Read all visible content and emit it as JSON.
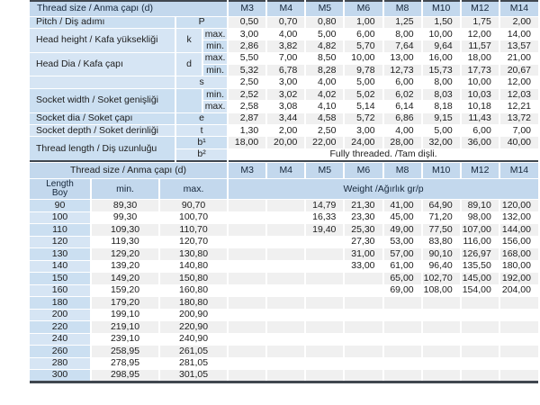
{
  "colors": {
    "header_blue": "#c3d8ed",
    "label_blue": "#d6e5f4",
    "label_blue_dark": "#cbdff1",
    "row_gray": "#f0f0f0",
    "border_dark": "#40474f"
  },
  "spec_table": {
    "title": "Thread size / Anma çapı (d)",
    "columns": [
      "M3",
      "M4",
      "M5",
      "M6",
      "M8",
      "M10",
      "M12",
      "M14"
    ],
    "rows": [
      {
        "label": "Pitch / Diş adımı",
        "lspan": 1,
        "sym": "P",
        "wide": true,
        "values": [
          "0,50",
          "0,70",
          "0,80",
          "1,00",
          "1,25",
          "1,50",
          "1,75",
          "2,00"
        ]
      },
      {
        "label": "Head height / Kafa yüksekliği",
        "lspan": 2,
        "sym": "k",
        "sspan": 2,
        "sub": "max.",
        "values": [
          "3,00",
          "4,00",
          "5,00",
          "6,00",
          "8,00",
          "10,00",
          "12,00",
          "14,00"
        ]
      },
      {
        "sub": "min.",
        "values": [
          "2,86",
          "3,82",
          "4,82",
          "5,70",
          "7,64",
          "9,64",
          "11,57",
          "13,57"
        ]
      },
      {
        "label": "Head Dia / Kafa çapı",
        "lspan": 2,
        "sym": "d",
        "sspan": 2,
        "sub": "max.",
        "values": [
          "5,50",
          "7,00",
          "8,50",
          "10,00",
          "13,00",
          "16,00",
          "18,00",
          "21,00"
        ]
      },
      {
        "sub": "min.",
        "values": [
          "5,32",
          "6,78",
          "8,28",
          "9,78",
          "12,73",
          "15,73",
          "17,73",
          "20,67"
        ]
      },
      {
        "label": "",
        "lspan": 1,
        "sym": "s",
        "wide": true,
        "values": [
          "2,50",
          "3,00",
          "4,00",
          "5,00",
          "6,00",
          "8,00",
          "10,00",
          "12,00"
        ]
      },
      {
        "label": "Socket width / Soket genişliği",
        "lspan": 2,
        "sym": "",
        "sspan": 2,
        "sub": "min.",
        "values": [
          "2,52",
          "3,02",
          "4,02",
          "5,02",
          "6,02",
          "8,03",
          "10,03",
          "12,03"
        ]
      },
      {
        "sub": "max.",
        "values": [
          "2,58",
          "3,08",
          "4,10",
          "5,14",
          "6,14",
          "8,18",
          "10,18",
          "12,21"
        ]
      },
      {
        "label": "Socket dia / Soket çapı",
        "lspan": 1,
        "sym": "e",
        "wide": true,
        "values": [
          "2,87",
          "3,44",
          "4,58",
          "5,72",
          "6,86",
          "9,15",
          "11,43",
          "13,72"
        ]
      },
      {
        "label": "Socket depth / Soket derinliği",
        "lspan": 1,
        "sym": "t",
        "wide": true,
        "values": [
          "1,30",
          "2,00",
          "2,50",
          "3,00",
          "4,00",
          "5,00",
          "6,00",
          "7,00"
        ]
      },
      {
        "label": "Thread length / Diş uzunluğu",
        "lspan": 2,
        "sym": "b¹",
        "wide": true,
        "values": [
          "18,00",
          "20,00",
          "22,00",
          "24,00",
          "28,00",
          "32,00",
          "36,00",
          "40,00"
        ]
      },
      {
        "sym": "b²",
        "wide": true,
        "spanText": "Fully threaded. /Tam dişli."
      }
    ]
  },
  "weight_table": {
    "title": "Thread size / Anma çapı (d)",
    "columns": [
      "M3",
      "M4",
      "M5",
      "M6",
      "M8",
      "M10",
      "M12",
      "M14"
    ],
    "length_header_line1": "Length",
    "length_header_line2": "Boy",
    "min_header": "min.",
    "max_header": "max.",
    "weight_header": "Weight /Ağırlık gr/p",
    "rows": [
      {
        "length": "90",
        "min": "89,30",
        "max": "90,70",
        "weights": [
          "",
          "",
          "14,79",
          "21,30",
          "41,00",
          "64,90",
          "89,10",
          "120,00"
        ]
      },
      {
        "length": "100",
        "min": "99,30",
        "max": "100,70",
        "weights": [
          "",
          "",
          "16,33",
          "23,30",
          "45,00",
          "71,20",
          "98,00",
          "132,00"
        ]
      },
      {
        "length": "110",
        "min": "109,30",
        "max": "110,70",
        "weights": [
          "",
          "",
          "19,40",
          "25,30",
          "49,00",
          "77,50",
          "107,00",
          "144,00"
        ]
      },
      {
        "length": "120",
        "min": "119,30",
        "max": "120,70",
        "weights": [
          "",
          "",
          "",
          "27,30",
          "53,00",
          "83,80",
          "116,00",
          "156,00"
        ]
      },
      {
        "length": "130",
        "min": "129,20",
        "max": "130,80",
        "weights": [
          "",
          "",
          "",
          "31,00",
          "57,00",
          "90,10",
          "126,97",
          "168,00"
        ]
      },
      {
        "length": "140",
        "min": "139,20",
        "max": "140,80",
        "weights": [
          "",
          "",
          "",
          "33,00",
          "61,00",
          "96,40",
          "135,50",
          "180,00"
        ]
      },
      {
        "length": "150",
        "min": "149,20",
        "max": "150,80",
        "weights": [
          "",
          "",
          "",
          "",
          "65,00",
          "102,70",
          "145,00",
          "192,00"
        ]
      },
      {
        "length": "160",
        "min": "159,20",
        "max": "160,80",
        "weights": [
          "",
          "",
          "",
          "",
          "69,00",
          "108,00",
          "154,00",
          "204,00"
        ]
      },
      {
        "length": "180",
        "min": "179,20",
        "max": "180,80",
        "weights": [
          "",
          "",
          "",
          "",
          "",
          "",
          "",
          ""
        ]
      },
      {
        "length": "200",
        "min": "199,10",
        "max": "200,90",
        "weights": [
          "",
          "",
          "",
          "",
          "",
          "",
          "",
          ""
        ]
      },
      {
        "length": "220",
        "min": "219,10",
        "max": "220,90",
        "weights": [
          "",
          "",
          "",
          "",
          "",
          "",
          "",
          ""
        ]
      },
      {
        "length": "240",
        "min": "239,10",
        "max": "240,90",
        "weights": [
          "",
          "",
          "",
          "",
          "",
          "",
          "",
          ""
        ]
      },
      {
        "length": "260",
        "min": "258,95",
        "max": "261,05",
        "weights": [
          "",
          "",
          "",
          "",
          "",
          "",
          "",
          ""
        ]
      },
      {
        "length": "280",
        "min": "278,95",
        "max": "281,05",
        "weights": [
          "",
          "",
          "",
          "",
          "",
          "",
          "",
          ""
        ]
      },
      {
        "length": "300",
        "min": "298,95",
        "max": "301,05",
        "weights": [
          "",
          "",
          "",
          "",
          "",
          "",
          "",
          ""
        ]
      }
    ]
  }
}
